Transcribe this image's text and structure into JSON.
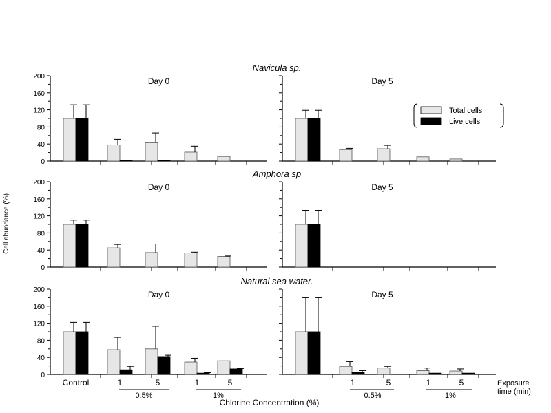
{
  "figure": {
    "ylabel": "Cell abundance (%)",
    "xlabel": "Chlorine Concentration (%)",
    "exposure_label_line1": "Exposure",
    "exposure_label_line2": "time (min)",
    "group_labels": [
      "Control",
      "1",
      "5",
      "1",
      "5"
    ],
    "concentration_labels": [
      "0.5%",
      "1%"
    ],
    "yticks": [
      "0",
      "40",
      "80",
      "120",
      "160",
      "200"
    ],
    "legend": {
      "total": "Total cells",
      "live": "Live cells"
    },
    "colors": {
      "total": "#e6e6e6",
      "live": "#000000",
      "axis": "#000000"
    }
  },
  "chart_data": [
    {
      "type": "bar",
      "title": "Navicula sp.",
      "panel_label": "Day 0",
      "categories": [
        "Control",
        "0.5% 1",
        "0.5% 5",
        "1% 1",
        "1% 5"
      ],
      "ylim": [
        0,
        200
      ],
      "series": [
        {
          "name": "Total cells",
          "values": [
            100,
            38,
            43,
            21,
            11
          ],
          "errors": [
            32,
            13,
            23,
            14,
            0
          ]
        },
        {
          "name": "Live cells",
          "values": [
            100,
            1,
            1,
            0,
            0
          ],
          "errors": [
            32,
            0,
            0,
            0,
            0
          ]
        }
      ]
    },
    {
      "type": "bar",
      "title": "",
      "panel_label": "Day 5",
      "categories": [
        "Control",
        "0.5% 1",
        "0.5% 5",
        "1% 1",
        "1% 5"
      ],
      "ylim": [
        0,
        200
      ],
      "series": [
        {
          "name": "Total cells",
          "values": [
            100,
            27,
            29,
            10,
            5
          ],
          "errors": [
            19,
            3,
            8,
            0,
            0
          ]
        },
        {
          "name": "Live cells",
          "values": [
            100,
            0,
            0,
            0,
            0
          ],
          "errors": [
            19,
            0,
            0,
            0,
            0
          ]
        }
      ]
    },
    {
      "type": "bar",
      "title": "Amphora sp",
      "panel_label": "Day 0",
      "categories": [
        "Control",
        "0.5% 1",
        "0.5% 5",
        "1% 1",
        "1% 5"
      ],
      "ylim": [
        0,
        200
      ],
      "series": [
        {
          "name": "Total cells",
          "values": [
            100,
            45,
            34,
            33,
            25
          ],
          "errors": [
            10,
            8,
            20,
            2,
            1
          ]
        },
        {
          "name": "Live cells",
          "values": [
            100,
            0,
            0,
            0,
            0
          ],
          "errors": [
            10,
            0,
            0,
            0,
            0
          ]
        }
      ]
    },
    {
      "type": "bar",
      "title": "",
      "panel_label": "Day 5",
      "categories": [
        "Control",
        "0.5% 1",
        "0.5% 5",
        "1% 1",
        "1% 5"
      ],
      "ylim": [
        0,
        200
      ],
      "series": [
        {
          "name": "Total cells",
          "values": [
            100,
            0,
            0,
            0,
            0
          ],
          "errors": [
            33,
            0,
            0,
            0,
            0
          ]
        },
        {
          "name": "Live cells",
          "values": [
            100,
            0,
            0,
            0,
            0
          ],
          "errors": [
            33,
            0,
            0,
            0,
            0
          ]
        }
      ]
    },
    {
      "type": "bar",
      "title": "Natural sea water.",
      "panel_label": "Day 0",
      "categories": [
        "Control",
        "0.5% 1",
        "0.5% 5",
        "1% 1",
        "1% 5"
      ],
      "ylim": [
        0,
        200
      ],
      "series": [
        {
          "name": "Total cells",
          "values": [
            100,
            58,
            60,
            29,
            32
          ],
          "errors": [
            22,
            29,
            53,
            9,
            0
          ]
        },
        {
          "name": "Live cells",
          "values": [
            100,
            11,
            42,
            3,
            13
          ],
          "errors": [
            22,
            8,
            3,
            1,
            1
          ]
        }
      ]
    },
    {
      "type": "bar",
      "title": "",
      "panel_label": "Day 5",
      "categories": [
        "Control",
        "0.5% 1",
        "0.5% 5",
        "1% 1",
        "1% 5"
      ],
      "ylim": [
        0,
        200
      ],
      "series": [
        {
          "name": "Total cells",
          "values": [
            100,
            19,
            15,
            9,
            8
          ],
          "errors": [
            80,
            11,
            4,
            6,
            5
          ]
        },
        {
          "name": "Live cells",
          "values": [
            100,
            5,
            0,
            3,
            3
          ],
          "errors": [
            80,
            4,
            0,
            0,
            0
          ]
        }
      ]
    }
  ]
}
